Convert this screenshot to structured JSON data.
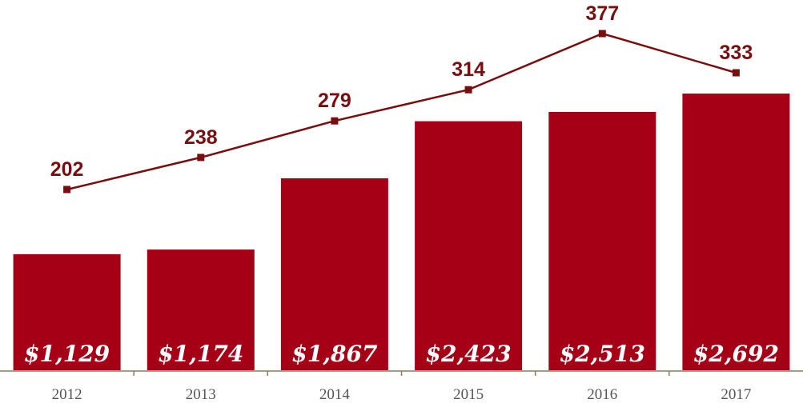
{
  "chart_data": {
    "type": "bar",
    "categories": [
      "2012",
      "2013",
      "2014",
      "2015",
      "2016",
      "2017"
    ],
    "series": [
      {
        "type": "bar",
        "values": [
          1129,
          1174,
          1867,
          2423,
          2513,
          2692
        ],
        "labels": [
          "$1,129",
          "$1,174",
          "$1,867",
          "$2,423",
          "$2,513",
          "$2,692"
        ]
      },
      {
        "type": "line",
        "values": [
          202,
          238,
          279,
          314,
          377,
          333
        ],
        "labels": [
          "202",
          "238",
          "279",
          "314",
          "377",
          "333"
        ]
      }
    ],
    "title": "",
    "xlabel": "",
    "ylabel": "",
    "bar_ylim": [
      0,
      3000
    ],
    "line_ylim": [
      0,
      420
    ],
    "grid": false,
    "legend": "none",
    "colors": {
      "bar": "#a50016",
      "line": "#7a0d0d",
      "axis": "#8c7a5a"
    }
  }
}
